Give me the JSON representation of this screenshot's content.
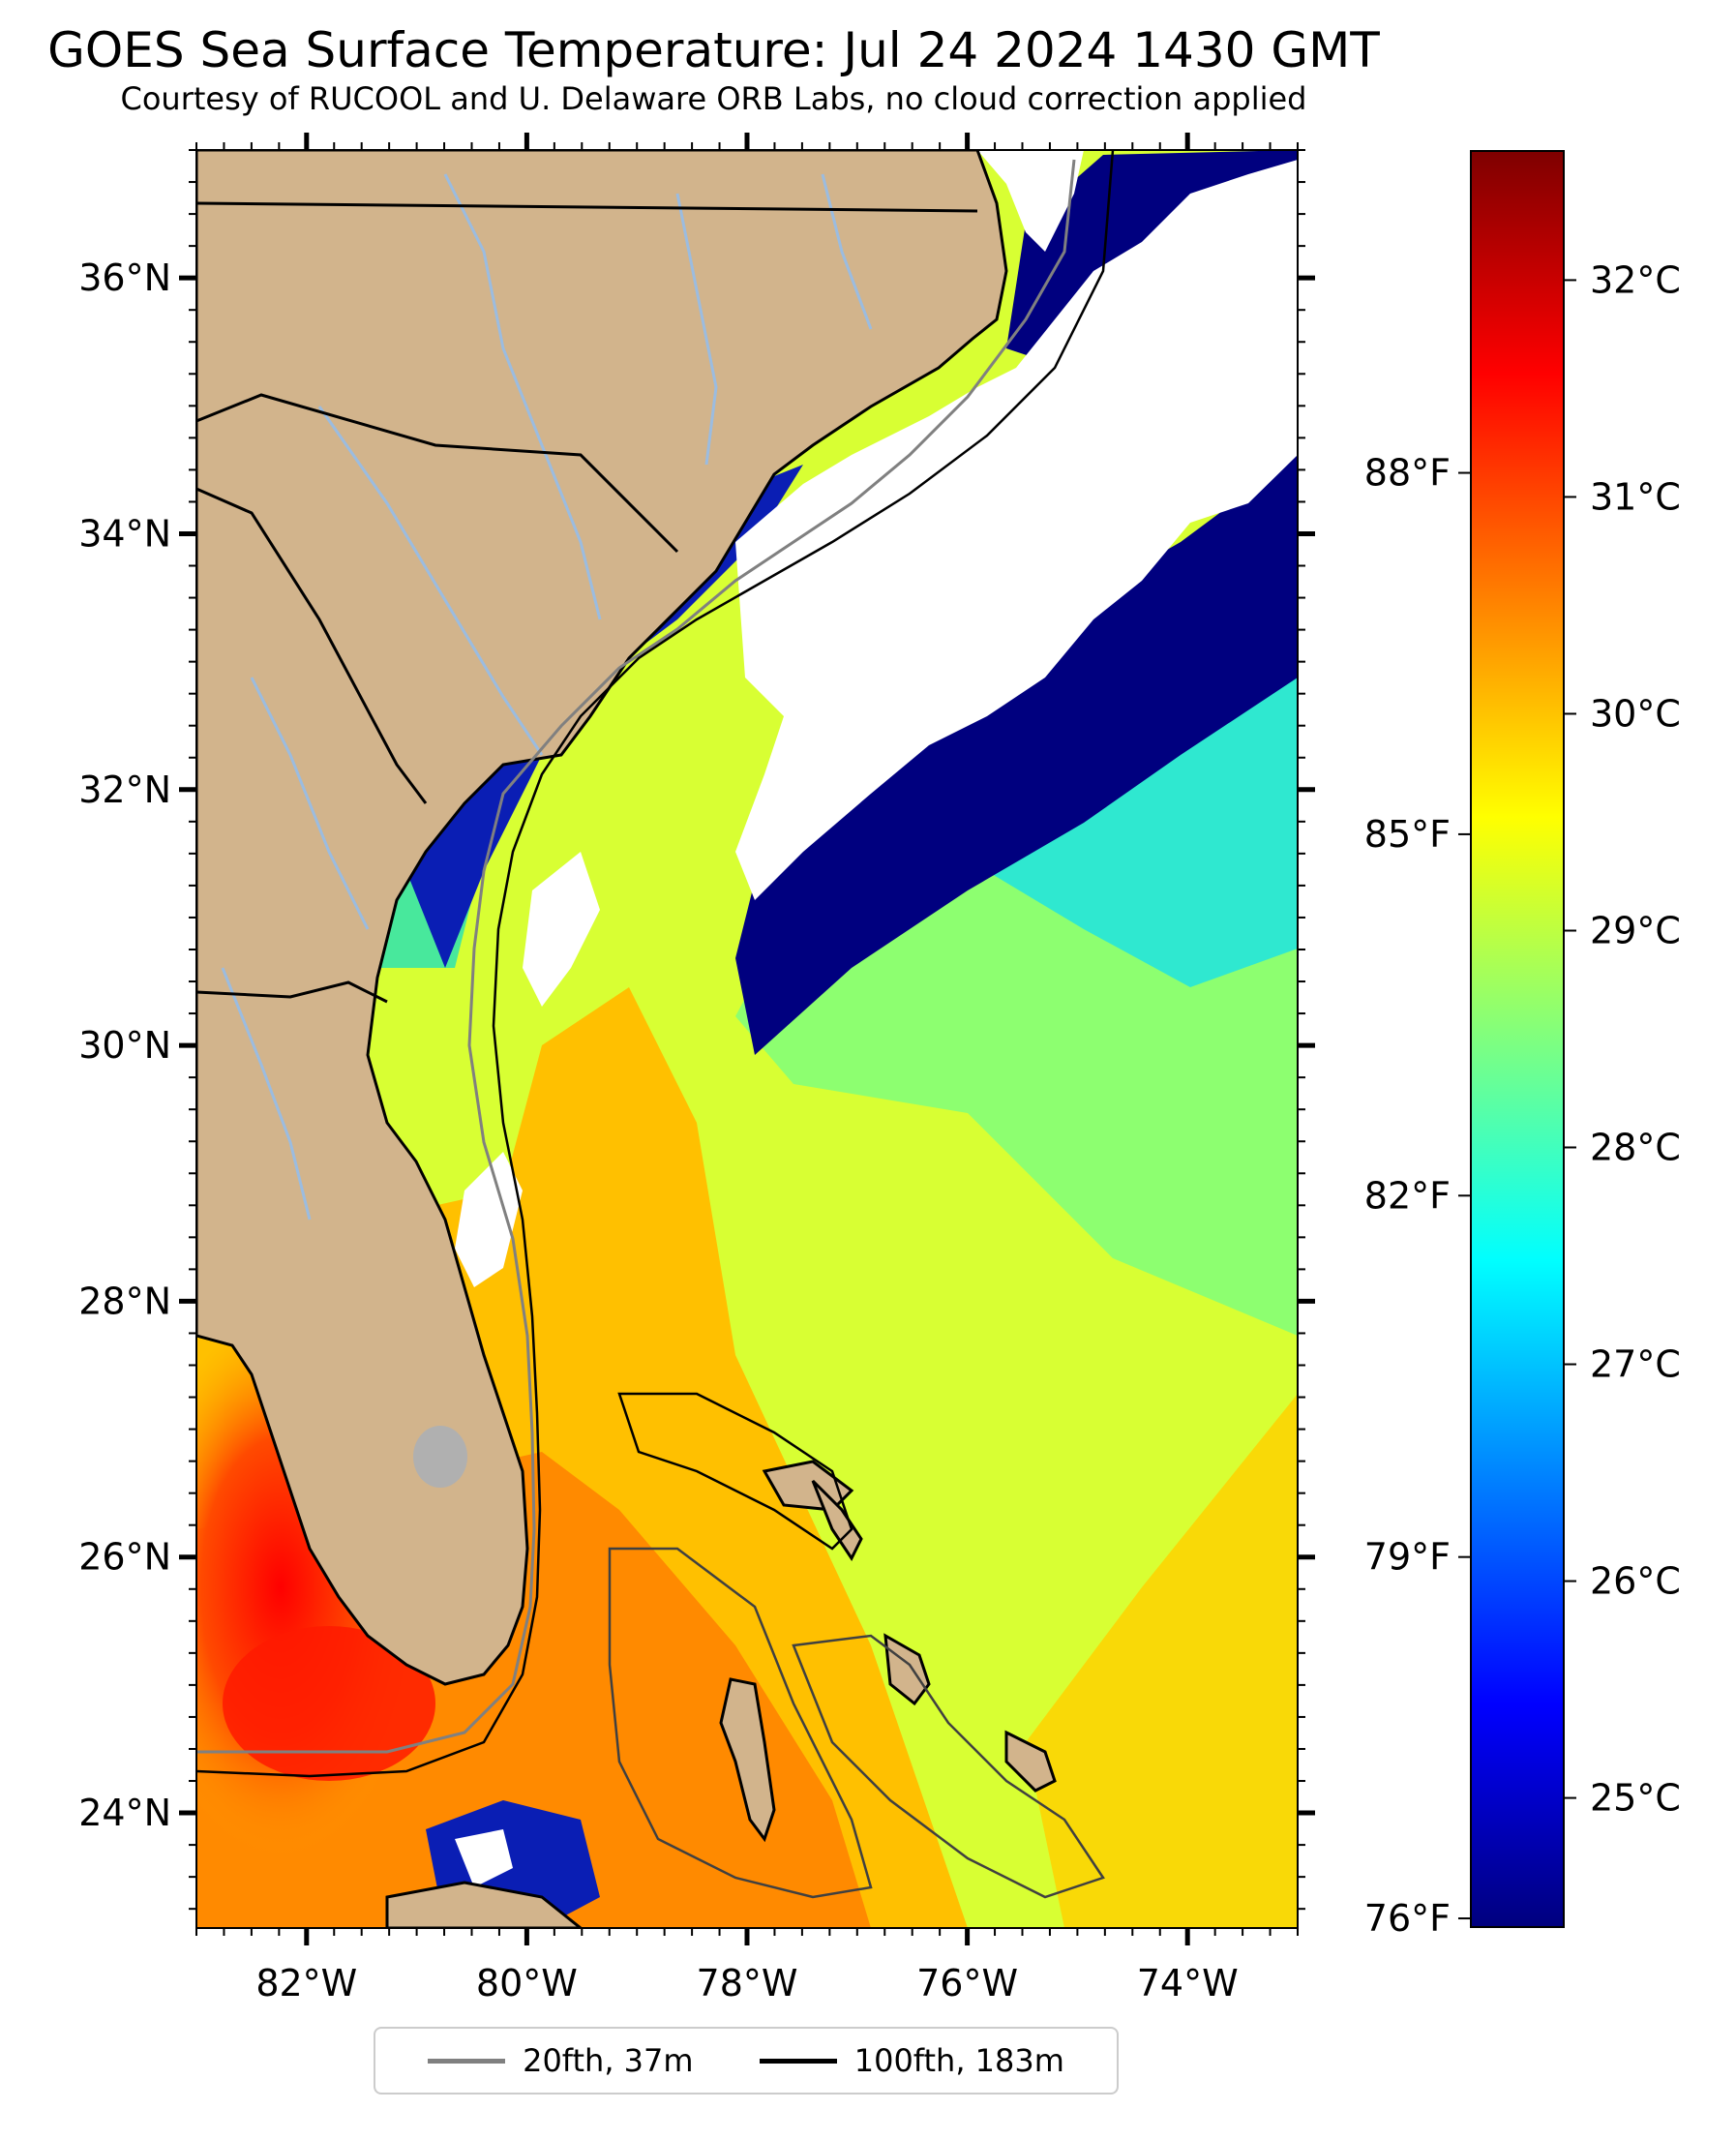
{
  "title": "GOES Sea Surface Temperature: Jul 24 2024 1430 GMT",
  "subtitle": "Courtesy of RUCOOL and U. Delaware ORB Labs, no cloud correction applied",
  "map": {
    "extent_lon": [
      -83.0,
      -73.0
    ],
    "extent_lat": [
      23.1,
      37.0
    ],
    "lat_ticks": [
      {
        "value": 24,
        "label": "24°N"
      },
      {
        "value": 26,
        "label": "26°N"
      },
      {
        "value": 28,
        "label": "28°N"
      },
      {
        "value": 30,
        "label": "30°N"
      },
      {
        "value": 32,
        "label": "32°N"
      },
      {
        "value": 34,
        "label": "34°N"
      },
      {
        "value": 36,
        "label": "36°N"
      }
    ],
    "lon_ticks": [
      {
        "value": -82,
        "label": "82°W"
      },
      {
        "value": -80,
        "label": "80°W"
      },
      {
        "value": -78,
        "label": "78°W"
      },
      {
        "value": -76,
        "label": "76°W"
      },
      {
        "value": -74,
        "label": "74°W"
      }
    ],
    "colors": {
      "land": "#d2b48c",
      "cloud": "#ffffff",
      "lakes": "#b0b0b0",
      "rivers": "#9bbce0"
    }
  },
  "fahrenheit_scale": [
    {
      "value": 76,
      "label": "76°F"
    },
    {
      "value": 79,
      "label": "79°F"
    },
    {
      "value": 82,
      "label": "82°F"
    },
    {
      "value": 85,
      "label": "85°F"
    },
    {
      "value": 88,
      "label": "88°F"
    }
  ],
  "colorbar": {
    "colormap": "jet",
    "range_c": [
      24.4,
      32.6
    ],
    "ticks": [
      {
        "value": 25,
        "label": "25°C"
      },
      {
        "value": 26,
        "label": "26°C"
      },
      {
        "value": 27,
        "label": "27°C"
      },
      {
        "value": 28,
        "label": "28°C"
      },
      {
        "value": 29,
        "label": "29°C"
      },
      {
        "value": 30,
        "label": "30°C"
      },
      {
        "value": 31,
        "label": "31°C"
      },
      {
        "value": 32,
        "label": "32°C"
      }
    ]
  },
  "legend": [
    {
      "label": "20fth, 37m",
      "color": "#808080"
    },
    {
      "label": "100fth, 183m",
      "color": "#000000"
    }
  ]
}
